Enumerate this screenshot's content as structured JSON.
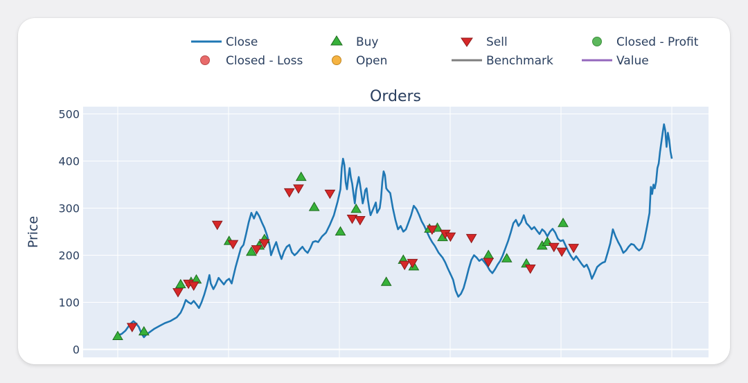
{
  "chart_data": {
    "type": "line",
    "title": "Orders",
    "ylabel": "Price",
    "xlabel": "",
    "ylim": [
      -8,
      508
    ],
    "yticks": [
      0,
      100,
      200,
      300,
      400,
      500
    ],
    "grid": true,
    "legend_position": "top",
    "legend": [
      "Close",
      "Buy",
      "Sell",
      "Closed - Profit",
      "Closed - Loss",
      "Open",
      "Benchmark",
      "Value"
    ],
    "colors": {
      "close": "#1f77b4",
      "buy": "#37b13a",
      "sell": "#d62728",
      "closed_profit": "#5cb85c",
      "closed_loss": "#e86a6a",
      "open": "#f5b342",
      "benchmark": "#7f7f7f",
      "value": "#9467bd",
      "plot_bg": "#e5ecf6"
    },
    "close_series": [
      [
        0,
        30
      ],
      [
        3,
        33
      ],
      [
        6,
        40
      ],
      [
        8,
        48
      ],
      [
        10,
        55
      ],
      [
        12,
        60
      ],
      [
        14,
        55
      ],
      [
        16,
        48
      ],
      [
        18,
        35
      ],
      [
        20,
        26
      ],
      [
        22,
        32
      ],
      [
        25,
        38
      ],
      [
        28,
        44
      ],
      [
        32,
        50
      ],
      [
        36,
        56
      ],
      [
        40,
        60
      ],
      [
        45,
        68
      ],
      [
        48,
        78
      ],
      [
        50,
        90
      ],
      [
        52,
        105
      ],
      [
        54,
        100
      ],
      [
        56,
        97
      ],
      [
        58,
        103
      ],
      [
        60,
        96
      ],
      [
        62,
        88
      ],
      [
        64,
        100
      ],
      [
        66,
        116
      ],
      [
        68,
        135
      ],
      [
        70,
        158
      ],
      [
        71,
        140
      ],
      [
        73,
        128
      ],
      [
        75,
        138
      ],
      [
        77,
        152
      ],
      [
        79,
        145
      ],
      [
        81,
        138
      ],
      [
        83,
        146
      ],
      [
        85,
        150
      ],
      [
        87,
        140
      ],
      [
        90,
        175
      ],
      [
        92,
        195
      ],
      [
        94,
        215
      ],
      [
        96,
        222
      ],
      [
        98,
        245
      ],
      [
        100,
        270
      ],
      [
        102,
        290
      ],
      [
        104,
        278
      ],
      [
        106,
        292
      ],
      [
        108,
        283
      ],
      [
        110,
        270
      ],
      [
        112,
        258
      ],
      [
        114,
        242
      ],
      [
        116,
        220
      ],
      [
        117,
        200
      ],
      [
        119,
        215
      ],
      [
        121,
        228
      ],
      [
        123,
        208
      ],
      [
        125,
        192
      ],
      [
        127,
        208
      ],
      [
        129,
        218
      ],
      [
        131,
        222
      ],
      [
        133,
        206
      ],
      [
        135,
        200
      ],
      [
        137,
        205
      ],
      [
        139,
        212
      ],
      [
        141,
        218
      ],
      [
        143,
        210
      ],
      [
        145,
        205
      ],
      [
        147,
        215
      ],
      [
        149,
        228
      ],
      [
        151,
        230
      ],
      [
        153,
        228
      ],
      [
        156,
        240
      ],
      [
        159,
        248
      ],
      [
        162,
        265
      ],
      [
        165,
        285
      ],
      [
        168,
        315
      ],
      [
        170,
        340
      ],
      [
        171,
        385
      ],
      [
        172,
        405
      ],
      [
        173,
        392
      ],
      [
        174,
        355
      ],
      [
        175,
        340
      ],
      [
        176,
        365
      ],
      [
        177,
        385
      ],
      [
        178,
        365
      ],
      [
        179,
        352
      ],
      [
        180,
        330
      ],
      [
        181,
        310
      ],
      [
        182,
        338
      ],
      [
        183,
        352
      ],
      [
        184,
        366
      ],
      [
        185,
        350
      ],
      [
        186,
        330
      ],
      [
        187,
        310
      ],
      [
        188,
        322
      ],
      [
        189,
        338
      ],
      [
        190,
        342
      ],
      [
        191,
        318
      ],
      [
        192,
        300
      ],
      [
        193,
        285
      ],
      [
        195,
        298
      ],
      [
        197,
        312
      ],
      [
        198,
        290
      ],
      [
        200,
        300
      ],
      [
        201,
        320
      ],
      [
        202,
        356
      ],
      [
        203,
        378
      ],
      [
        204,
        370
      ],
      [
        205,
        342
      ],
      [
        206,
        338
      ],
      [
        208,
        332
      ],
      [
        210,
        300
      ],
      [
        212,
        275
      ],
      [
        214,
        255
      ],
      [
        216,
        262
      ],
      [
        218,
        250
      ],
      [
        220,
        255
      ],
      [
        222,
        270
      ],
      [
        224,
        285
      ],
      [
        226,
        305
      ],
      [
        228,
        298
      ],
      [
        230,
        286
      ],
      [
        232,
        272
      ],
      [
        234,
        262
      ],
      [
        236,
        250
      ],
      [
        238,
        238
      ],
      [
        240,
        228
      ],
      [
        242,
        220
      ],
      [
        245,
        205
      ],
      [
        248,
        195
      ],
      [
        250,
        185
      ],
      [
        252,
        172
      ],
      [
        254,
        160
      ],
      [
        256,
        148
      ],
      [
        258,
        125
      ],
      [
        260,
        112
      ],
      [
        262,
        118
      ],
      [
        264,
        130
      ],
      [
        266,
        150
      ],
      [
        268,
        172
      ],
      [
        270,
        190
      ],
      [
        272,
        200
      ],
      [
        274,
        195
      ],
      [
        276,
        188
      ],
      [
        278,
        192
      ],
      [
        280,
        185
      ],
      [
        282,
        178
      ],
      [
        284,
        168
      ],
      [
        286,
        162
      ],
      [
        288,
        170
      ],
      [
        290,
        180
      ],
      [
        292,
        188
      ],
      [
        294,
        200
      ],
      [
        296,
        215
      ],
      [
        298,
        230
      ],
      [
        300,
        248
      ],
      [
        302,
        268
      ],
      [
        304,
        275
      ],
      [
        306,
        262
      ],
      [
        308,
        270
      ],
      [
        310,
        285
      ],
      [
        312,
        268
      ],
      [
        314,
        262
      ],
      [
        316,
        255
      ],
      [
        318,
        260
      ],
      [
        320,
        252
      ],
      [
        322,
        245
      ],
      [
        324,
        255
      ],
      [
        326,
        250
      ],
      [
        328,
        240
      ],
      [
        330,
        250
      ],
      [
        332,
        256
      ],
      [
        334,
        248
      ],
      [
        336,
        235
      ],
      [
        338,
        230
      ],
      [
        340,
        232
      ],
      [
        342,
        220
      ],
      [
        344,
        208
      ],
      [
        346,
        198
      ],
      [
        348,
        190
      ],
      [
        350,
        198
      ],
      [
        352,
        190
      ],
      [
        354,
        182
      ],
      [
        356,
        175
      ],
      [
        358,
        180
      ],
      [
        360,
        168
      ],
      [
        362,
        150
      ],
      [
        364,
        162
      ],
      [
        366,
        175
      ],
      [
        368,
        180
      ],
      [
        370,
        184
      ],
      [
        372,
        186
      ],
      [
        374,
        205
      ],
      [
        376,
        225
      ],
      [
        378,
        255
      ],
      [
        380,
        240
      ],
      [
        382,
        228
      ],
      [
        384,
        218
      ],
      [
        386,
        205
      ],
      [
        388,
        210
      ],
      [
        390,
        218
      ],
      [
        392,
        224
      ],
      [
        394,
        222
      ],
      [
        396,
        215
      ],
      [
        398,
        210
      ],
      [
        400,
        215
      ],
      [
        402,
        232
      ],
      [
        404,
        260
      ],
      [
        406,
        290
      ],
      [
        407,
        345
      ],
      [
        408,
        330
      ],
      [
        409,
        350
      ],
      [
        410,
        342
      ],
      [
        411,
        356
      ],
      [
        412,
        385
      ],
      [
        413,
        395
      ],
      [
        414,
        420
      ],
      [
        415,
        440
      ],
      [
        416,
        460
      ],
      [
        417,
        478
      ],
      [
        418,
        465
      ],
      [
        419,
        430
      ],
      [
        420,
        460
      ],
      [
        421,
        445
      ],
      [
        422,
        420
      ],
      [
        423,
        405
      ]
    ],
    "x_range": [
      0,
      423
    ],
    "buy_markers": [
      [
        0,
        28
      ],
      [
        20,
        38
      ],
      [
        48,
        138
      ],
      [
        56,
        143
      ],
      [
        60,
        148
      ],
      [
        85,
        230
      ],
      [
        102,
        207
      ],
      [
        108,
        220
      ],
      [
        112,
        234
      ],
      [
        140,
        366
      ],
      [
        150,
        302
      ],
      [
        170,
        250
      ],
      [
        182,
        298
      ],
      [
        205,
        143
      ],
      [
        218,
        190
      ],
      [
        226,
        176
      ],
      [
        238,
        256
      ],
      [
        244,
        258
      ],
      [
        248,
        238
      ],
      [
        283,
        200
      ],
      [
        297,
        193
      ],
      [
        312,
        182
      ],
      [
        324,
        220
      ],
      [
        328,
        228
      ],
      [
        340,
        268
      ]
    ],
    "sell_markers": [
      [
        11,
        48
      ],
      [
        46,
        122
      ],
      [
        54,
        140
      ],
      [
        58,
        136
      ],
      [
        76,
        265
      ],
      [
        88,
        224
      ],
      [
        106,
        213
      ],
      [
        112,
        226
      ],
      [
        131,
        334
      ],
      [
        138,
        342
      ],
      [
        162,
        331
      ],
      [
        179,
        278
      ],
      [
        185,
        275
      ],
      [
        219,
        180
      ],
      [
        225,
        184
      ],
      [
        240,
        255
      ],
      [
        250,
        246
      ],
      [
        254,
        240
      ],
      [
        270,
        237
      ],
      [
        283,
        186
      ],
      [
        315,
        172
      ],
      [
        333,
        218
      ],
      [
        339,
        208
      ],
      [
        348,
        216
      ]
    ]
  }
}
